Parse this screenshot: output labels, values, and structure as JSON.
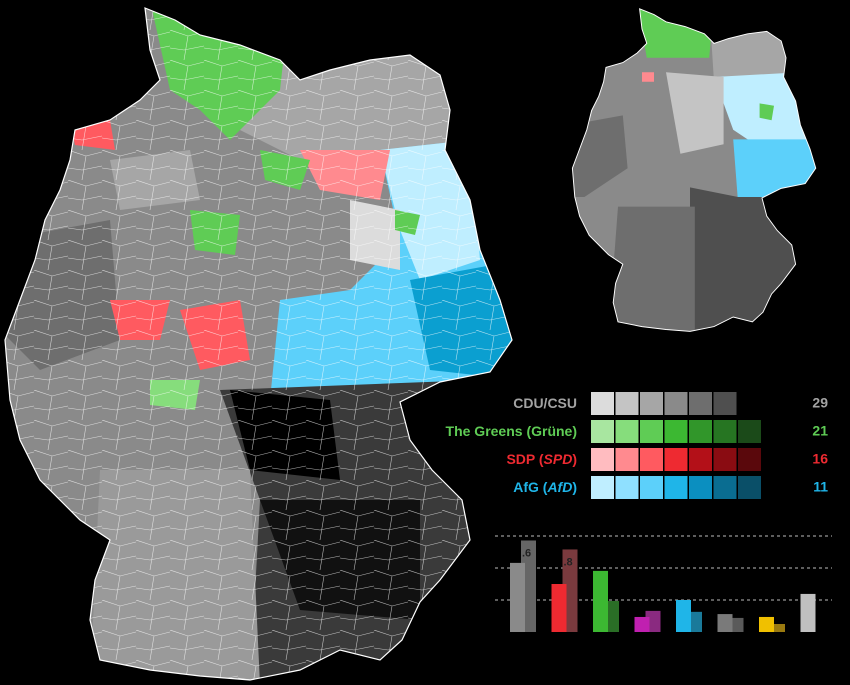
{
  "legend": [
    {
      "label": [
        {
          "text": "CDU/CSU"
        }
      ],
      "seats": 29,
      "text_color": "#a3a3a3",
      "shades": [
        "#dcdcdc",
        "#c4c4c4",
        "#a6a6a6",
        "#8a8a8a",
        "#6e6e6e",
        "#4f4f4f"
      ]
    },
    {
      "label": [
        {
          "text": "The Greens (Grüne)"
        }
      ],
      "seats": 21,
      "text_color": "#5fcc55",
      "shades": [
        "#a8e6a0",
        "#86dd7c",
        "#5fcc55",
        "#3cb832",
        "#31962a",
        "#267522",
        "#1b4a19"
      ]
    },
    {
      "label": [
        {
          "text": "SDP ("
        },
        {
          "text": "SPD",
          "italic": true
        },
        {
          "text": ")"
        }
      ],
      "seats": 16,
      "text_color": "#ee2a31",
      "shades": [
        "#ffbcc0",
        "#ff8a8f",
        "#ff5a60",
        "#ee2a31",
        "#b31018",
        "#8a0c12",
        "#5a080c"
      ]
    },
    {
      "label": [
        {
          "text": "AfG ("
        },
        {
          "text": "AfD",
          "italic": true
        },
        {
          "text": ")"
        }
      ],
      "seats": 11,
      "text_color": "#1fb5e8",
      "shades": [
        "#bfeeff",
        "#8fe0ff",
        "#5cd0fa",
        "#1fb5e8",
        "#0b8fc0",
        "#0a6d91",
        "#0a4f68"
      ]
    }
  ],
  "bar_chart": {
    "type": "bar",
    "ylim": [
      0,
      30
    ],
    "gridlines": [
      10,
      20,
      30
    ],
    "groups": [
      {
        "bars": [
          {
            "value": 21.6,
            "color": "#8a8a8a"
          },
          {
            "value": 28.6,
            "color": "#666666",
            "label": ".6"
          }
        ]
      },
      {
        "bars": [
          {
            "value": 15.0,
            "color": "#ee2a31"
          },
          {
            "value": 25.8,
            "color": "#7a3a3e",
            "label": ".8"
          }
        ]
      },
      {
        "bars": [
          {
            "value": 19.1,
            "color": "#3cb832"
          },
          {
            "value": 9.7,
            "color": "#2a6e26"
          }
        ]
      },
      {
        "bars": [
          {
            "value": 4.7,
            "color": "#c020b0"
          },
          {
            "value": 6.6,
            "color": "#8a2a80"
          }
        ]
      },
      {
        "bars": [
          {
            "value": 10.0,
            "color": "#1fb5e8"
          },
          {
            "value": 6.3,
            "color": "#1a7a9a"
          }
        ]
      },
      {
        "bars": [
          {
            "value": 5.6,
            "color": "#7a7a7a"
          },
          {
            "value": 4.4,
            "color": "#5a5a5a"
          }
        ]
      },
      {
        "bars": [
          {
            "value": 4.7,
            "color": "#f0c000"
          },
          {
            "value": 2.5,
            "color": "#9a7a10"
          }
        ]
      },
      {
        "bars": [
          {
            "value": 11.9,
            "color": "#c0c0c0"
          }
        ]
      }
    ]
  }
}
